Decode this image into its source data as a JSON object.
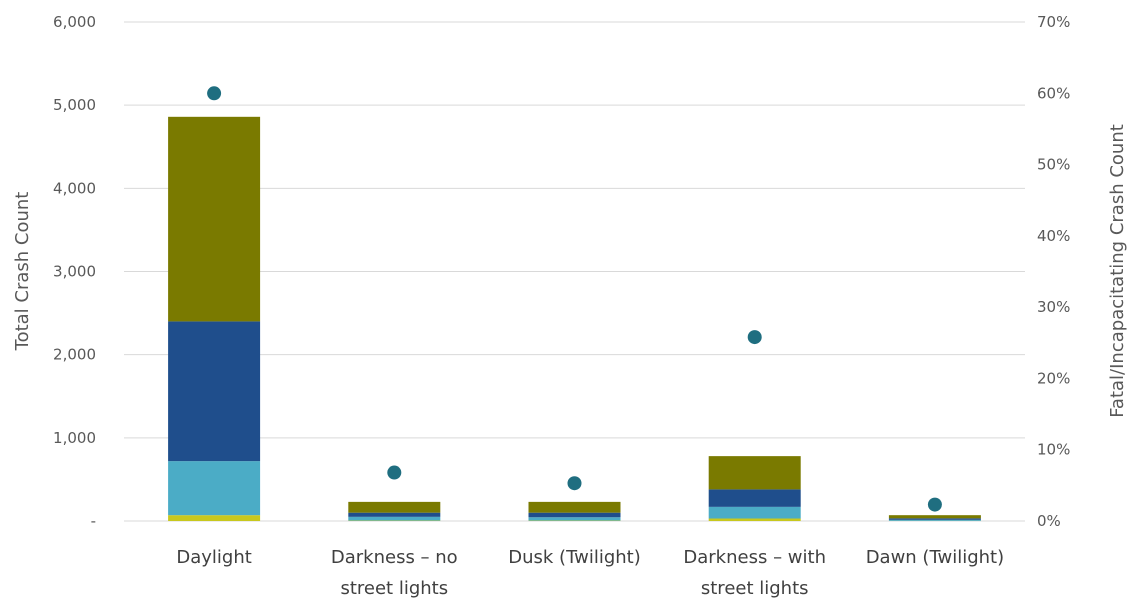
{
  "chart_data": {
    "type": "bar",
    "stacked": true,
    "categories": [
      [
        "Daylight"
      ],
      [
        "Darkness – no",
        "street lights"
      ],
      [
        "Dusk (Twilight)"
      ],
      [
        "Darkness – with",
        "street lights"
      ],
      [
        "Dawn (Twilight)"
      ]
    ],
    "series": [
      {
        "color": "#c8c81e",
        "values": [
          70,
          5,
          5,
          30,
          2
        ]
      },
      {
        "color": "#4bacc6",
        "values": [
          650,
          45,
          40,
          140,
          12
        ]
      },
      {
        "color": "#1f4e8c",
        "values": [
          1680,
          50,
          55,
          210,
          18
        ]
      },
      {
        "color": "#7a7a00",
        "values": [
          2460,
          130,
          130,
          400,
          38
        ]
      }
    ],
    "points": {
      "color": "#1f6e80",
      "values": [
        0.6,
        0.068,
        0.053,
        0.258,
        0.023
      ]
    },
    "ylabel": "Total Crash Count",
    "y2label": "Fatal/Incapacitating Crash Count",
    "ylim": [
      0,
      6000
    ],
    "y2lim": [
      0,
      0.7
    ],
    "yticks": [
      "-",
      "1,000",
      "2,000",
      "3,000",
      "4,000",
      "5,000",
      "6,000"
    ],
    "y2ticks": [
      "0%",
      "10%",
      "20%",
      "30%",
      "40%",
      "50%",
      "60%",
      "70%"
    ],
    "grid": true,
    "legend": "none"
  }
}
